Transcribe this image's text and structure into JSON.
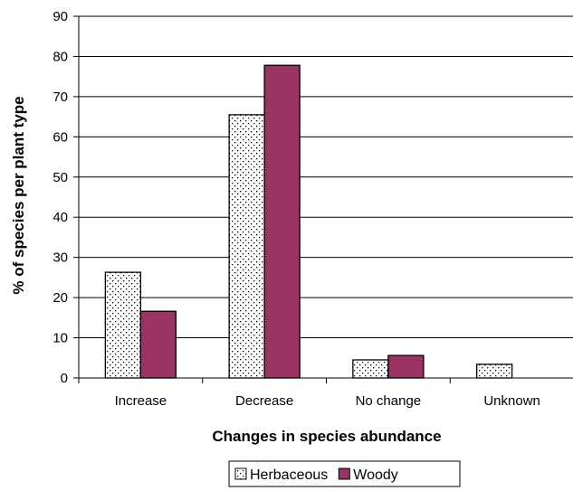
{
  "chart_data": {
    "type": "bar",
    "categories": [
      "Increase",
      "Decrease",
      "No change",
      "Unknown"
    ],
    "series": [
      {
        "name": "Herbaceous",
        "values": [
          26.3,
          65.5,
          4.5,
          3.4
        ],
        "pattern": "dotted",
        "color": "#ffffff"
      },
      {
        "name": "Woody",
        "values": [
          16.6,
          77.8,
          5.6,
          0
        ],
        "color": "#993366"
      }
    ],
    "title": "",
    "xlabel": "Changes in species abundance",
    "ylabel": "% of species per plant type",
    "ylim": [
      0,
      90
    ],
    "yticks": [
      0,
      10,
      20,
      30,
      40,
      50,
      60,
      70,
      80,
      90
    ],
    "grid": true,
    "legend_position": "bottom"
  }
}
